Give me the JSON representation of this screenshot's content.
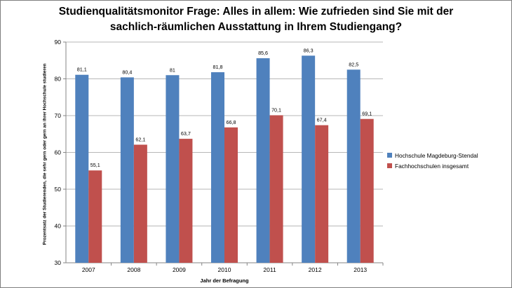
{
  "chart_data": {
    "type": "bar",
    "title_lines": [
      "Studienqualitätsmonitor Frage: Alles in allem: Wie zufrieden sind Sie mit der",
      "sachlich-räumlichen Ausstattung in Ihrem Studiengang?"
    ],
    "xlabel": "Jahr der Befragung",
    "ylabel": "Prozentsatz der Studierenden, die sehr gern oder gern an ihrer Hochschule studieren",
    "categories": [
      "2007",
      "2008",
      "2009",
      "2010",
      "2011",
      "2012",
      "2013"
    ],
    "series": [
      {
        "name": "Hochschule Magdeburg-Stendal",
        "color": "#4f81bd",
        "values": [
          81.1,
          80.4,
          81,
          81.8,
          85.6,
          86.3,
          82.5
        ],
        "labels": [
          "81,1",
          "80,4",
          "81",
          "81,8",
          "85,6",
          "86,3",
          "82,5"
        ]
      },
      {
        "name": "Fachhochschulen insgesamt",
        "color": "#c0504d",
        "values": [
          55.1,
          62.1,
          63.7,
          66.8,
          70.1,
          67.4,
          69.1
        ],
        "labels": [
          "55,1",
          "62,1",
          "63,7",
          "66,8",
          "70,1",
          "67,4",
          "69,1"
        ]
      }
    ],
    "ylim": [
      30,
      90
    ],
    "yticks": [
      30,
      40,
      50,
      60,
      70,
      80,
      90
    ],
    "grid": true,
    "legend_position": "right"
  }
}
